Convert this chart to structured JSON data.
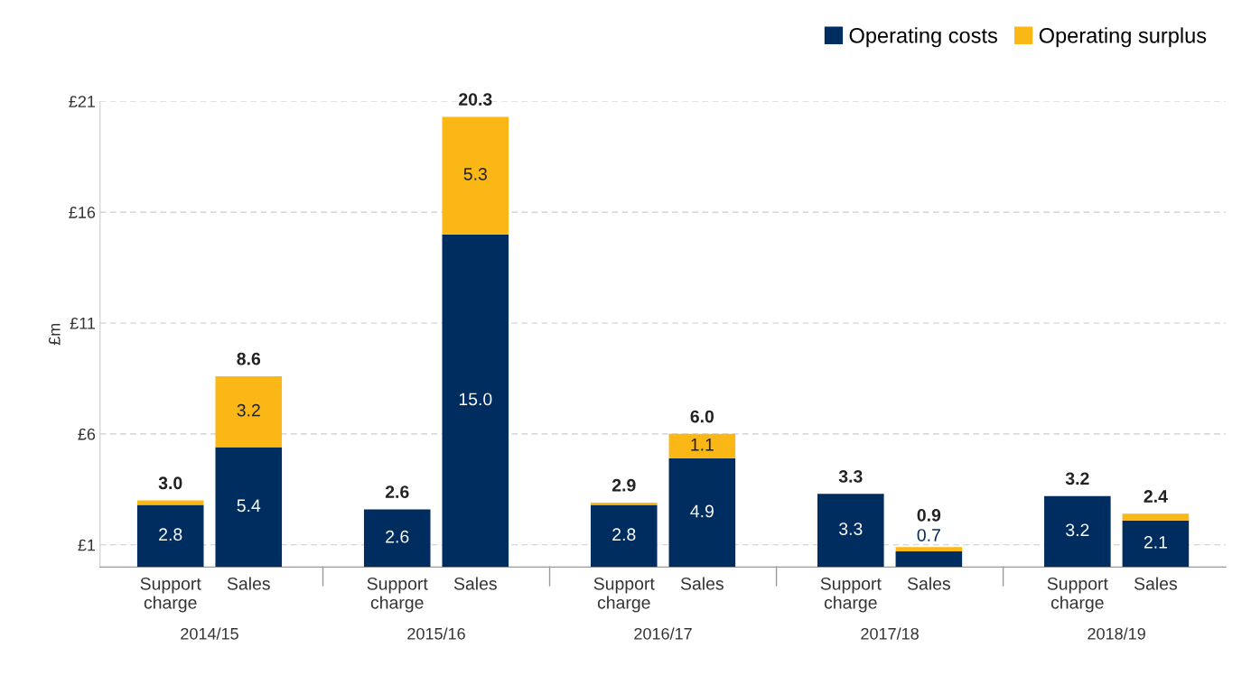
{
  "chart_data": {
    "type": "bar",
    "stacked": true,
    "ylabel": "£m",
    "categories": [
      "Support\ncharge",
      "Sales",
      "Support\ncharge",
      "Sales",
      "Support\ncharge",
      "Sales",
      "Support\ncharge",
      "Sales",
      "Support\ncharge",
      "Sales"
    ],
    "annotations": [
      "2014/15",
      "2015/16",
      "2016/17",
      "2017/18",
      "2018/19"
    ],
    "series": [
      {
        "name": "Operating costs",
        "color": "#002d5f",
        "values": [
          2.8,
          5.4,
          2.6,
          15.0,
          2.8,
          4.9,
          3.3,
          0.7,
          3.2,
          2.1
        ],
        "value_labels": [
          "2.8",
          "5.4",
          "2.6",
          "15.0",
          "2.8",
          "4.9",
          "3.3",
          "0.7",
          "3.2",
          "2.1"
        ]
      },
      {
        "name": "Operating surplus",
        "color": "#fbb715",
        "values": [
          0.2,
          3.2,
          0.0,
          5.3,
          0.1,
          1.1,
          0.0,
          0.2,
          0.0,
          0.3
        ],
        "value_labels": [
          null,
          "3.2",
          null,
          "5.3",
          null,
          "1.1",
          null,
          null,
          null,
          null
        ]
      }
    ],
    "totals": [
      "3.0",
      "8.6",
      "2.6",
      "20.3",
      "2.9",
      "6.0",
      "3.3",
      "0.9",
      "3.2",
      "2.4"
    ],
    "ylim": [
      0,
      21
    ],
    "yticks": [
      {
        "value": 1,
        "label": "£1"
      },
      {
        "value": 6,
        "label": "£6"
      },
      {
        "value": 11,
        "label": "£11"
      },
      {
        "value": 16,
        "label": "£16"
      },
      {
        "value": 21,
        "label": "£21"
      }
    ],
    "grid": "y",
    "legend": "top right"
  }
}
